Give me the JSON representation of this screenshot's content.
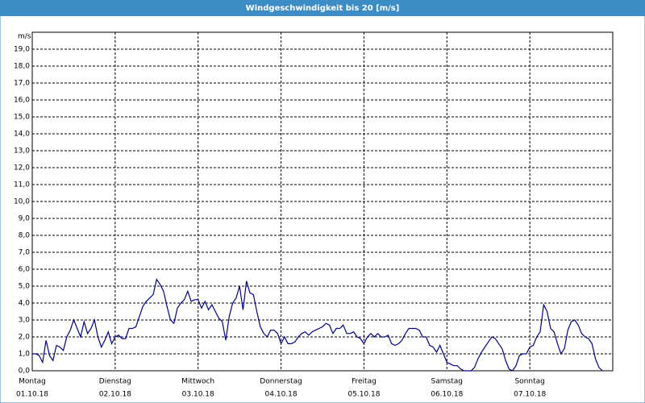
{
  "chart_data": {
    "type": "line",
    "title": "Windgeschwindigkeit bis 20 [m/s]",
    "y_label": "m/s",
    "xlim": [
      0,
      168
    ],
    "ylim": [
      0,
      20
    ],
    "yticks": [
      {
        "value": 0,
        "label": "0,0"
      },
      {
        "value": 1,
        "label": "1,0"
      },
      {
        "value": 2,
        "label": "2,0"
      },
      {
        "value": 3,
        "label": "3,0"
      },
      {
        "value": 4,
        "label": "4,0"
      },
      {
        "value": 5,
        "label": "5,0"
      },
      {
        "value": 6,
        "label": "6,0"
      },
      {
        "value": 7,
        "label": "7,0"
      },
      {
        "value": 8,
        "label": "8,0"
      },
      {
        "value": 9,
        "label": "9,0"
      },
      {
        "value": 10,
        "label": "10,0"
      },
      {
        "value": 11,
        "label": "11,0"
      },
      {
        "value": 12,
        "label": "12,0"
      },
      {
        "value": 13,
        "label": "13,0"
      },
      {
        "value": 14,
        "label": "14,0"
      },
      {
        "value": 15,
        "label": "15,0"
      },
      {
        "value": 16,
        "label": "16,0"
      },
      {
        "value": 17,
        "label": "17,0"
      },
      {
        "value": 18,
        "label": "18,0"
      },
      {
        "value": 19,
        "label": "19,0"
      }
    ],
    "xticks": [
      {
        "value": 0,
        "label": "Montag"
      },
      {
        "value": 24,
        "label": "Dienstag"
      },
      {
        "value": 48,
        "label": "Mittwoch"
      },
      {
        "value": 72,
        "label": "Donnerstag"
      },
      {
        "value": 96,
        "label": "Freitag"
      },
      {
        "value": 120,
        "label": "Samstag"
      },
      {
        "value": 144,
        "label": "Sonntag"
      }
    ],
    "xtick_dates": [
      "01.10.18",
      "02.10.18",
      "03.10.18",
      "04.10.18",
      "05.10.18",
      "06.10.18",
      "07.10.18"
    ],
    "grid": true,
    "series": [
      {
        "color": "#00008b",
        "x": [
          0,
          1,
          2,
          3,
          4,
          5,
          6,
          7,
          8,
          9,
          10,
          11,
          12,
          13,
          14,
          15,
          16,
          17,
          18,
          19,
          20,
          21,
          22,
          23,
          24,
          25,
          26,
          27,
          28,
          29,
          30,
          31,
          32,
          33,
          34,
          35,
          36,
          37,
          38,
          39,
          40,
          41,
          42,
          43,
          44,
          45,
          46,
          47,
          48,
          49,
          50,
          51,
          52,
          53,
          54,
          55,
          56,
          57,
          58,
          59,
          60,
          61,
          62,
          63,
          64,
          65,
          66,
          67,
          68,
          69,
          70,
          71,
          72,
          73,
          74,
          75,
          76,
          77,
          78,
          79,
          80,
          81,
          82,
          83,
          84,
          85,
          86,
          87,
          88,
          89,
          90,
          91,
          92,
          93,
          94,
          95,
          96,
          97,
          98,
          99,
          100,
          101,
          102,
          103,
          104,
          105,
          106,
          107,
          108,
          109,
          110,
          111,
          112,
          113,
          114,
          115,
          116,
          117,
          118,
          119,
          120,
          121,
          122,
          123,
          124,
          125,
          126,
          127,
          128,
          129,
          130,
          131,
          132,
          133,
          134,
          135,
          136,
          137,
          138,
          139,
          140,
          141,
          142,
          143,
          144,
          145,
          146,
          147,
          148,
          149,
          150,
          151,
          152,
          153,
          154,
          155,
          156,
          157,
          158,
          159,
          160,
          161,
          162,
          163,
          164,
          165
        ],
        "values": [
          1.0,
          1.0,
          0.9,
          0.5,
          1.8,
          0.9,
          0.6,
          1.5,
          1.4,
          1.2,
          2.0,
          2.4,
          3.0,
          2.5,
          2.0,
          2.9,
          2.2,
          2.5,
          3.0,
          2.0,
          1.4,
          1.8,
          2.3,
          1.6,
          2.0,
          2.1,
          1.9,
          1.9,
          2.5,
          2.5,
          2.6,
          3.2,
          3.8,
          4.1,
          4.3,
          4.5,
          5.4,
          5.1,
          4.7,
          3.8,
          3.0,
          2.8,
          3.7,
          4.0,
          4.2,
          4.7,
          4.1,
          4.2,
          4.2,
          3.7,
          4.1,
          3.6,
          3.9,
          3.5,
          3.1,
          2.9,
          1.8,
          3.2,
          4.0,
          4.3,
          5.0,
          3.6,
          5.3,
          4.6,
          4.5,
          3.5,
          2.6,
          2.2,
          2.0,
          2.4,
          2.4,
          2.2,
          1.6,
          2.0,
          1.6,
          1.6,
          1.7,
          2.0,
          2.2,
          2.3,
          2.1,
          2.3,
          2.4,
          2.5,
          2.6,
          2.8,
          2.7,
          2.2,
          2.5,
          2.5,
          2.7,
          2.2,
          2.2,
          2.3,
          2.0,
          1.9,
          1.6,
          2.0,
          2.2,
          2.0,
          2.2,
          2.0,
          2.0,
          2.1,
          1.6,
          1.5,
          1.6,
          1.8,
          2.2,
          2.5,
          2.5,
          2.5,
          2.4,
          2.0,
          2.0,
          1.5,
          1.4,
          1.1,
          1.5,
          1.0,
          0.5,
          0.4,
          0.3,
          0.3,
          0.1,
          0,
          0,
          0,
          0.2,
          0.7,
          1.1,
          1.4,
          1.7,
          2.0,
          1.9,
          1.6,
          1.3,
          0.6,
          0.1,
          0,
          0.3,
          0.9,
          1.0,
          1.0,
          1.4,
          1.5,
          2.0,
          2.3,
          3.9,
          3.5,
          2.5,
          2.3,
          1.6,
          1.0,
          1.3,
          2.4,
          2.9,
          3.0,
          2.7,
          2.2,
          2.0,
          1.9,
          1.6,
          0.7,
          0.2,
          0
        ]
      }
    ]
  }
}
